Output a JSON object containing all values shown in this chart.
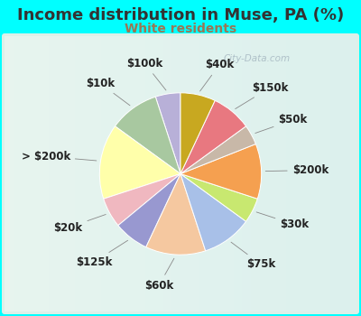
{
  "title": "Income distribution in Muse, PA (%)",
  "subtitle": "White residents",
  "title_color": "#333333",
  "subtitle_color": "#997755",
  "background_color": "#00ffff",
  "chart_bg_left": "#c8e8d8",
  "chart_bg_right": "#e8f4f0",
  "watermark": "City-Data.com",
  "labels": [
    "$100k",
    "$10k",
    "> $200k",
    "$20k",
    "$125k",
    "$60k",
    "$75k",
    "$30k",
    "$200k",
    "$50k",
    "$150k",
    "$40k"
  ],
  "values": [
    5,
    10,
    15,
    6,
    7,
    12,
    10,
    5,
    11,
    4,
    8,
    7
  ],
  "colors": [
    "#b8b0d8",
    "#a8c8a0",
    "#ffffaa",
    "#f0b8c0",
    "#9898d0",
    "#f5c8a0",
    "#a8c0e8",
    "#c8e870",
    "#f5a050",
    "#c8b8a8",
    "#e87880",
    "#c8a820"
  ],
  "startangle": 90,
  "label_fontsize": 8.5,
  "title_fontsize": 13,
  "subtitle_fontsize": 10
}
